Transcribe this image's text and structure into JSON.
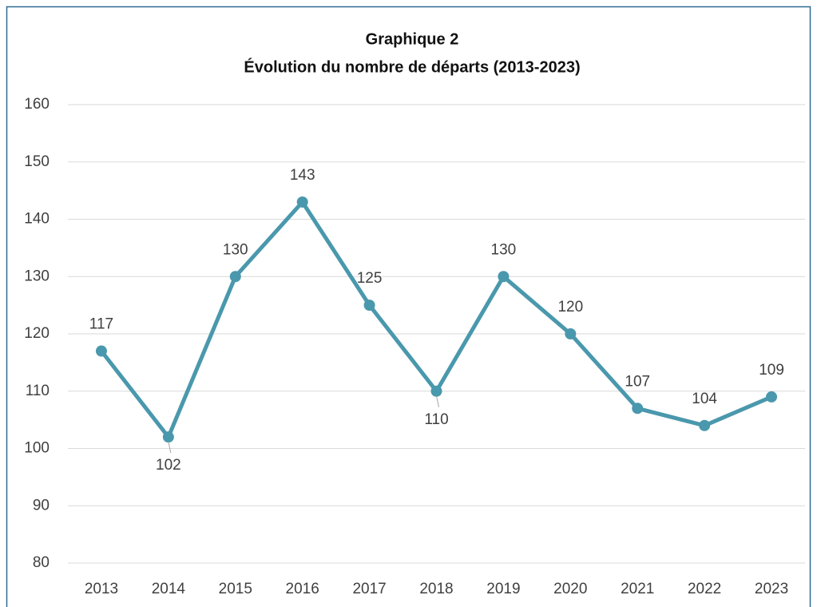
{
  "chart_data": {
    "type": "line",
    "title": "Graphique 2",
    "subtitle": "Évolution du nombre de départs (2013-2023)",
    "categories": [
      "2013",
      "2014",
      "2015",
      "2016",
      "2017",
      "2018",
      "2019",
      "2020",
      "2021",
      "2022",
      "2023"
    ],
    "series": [
      {
        "name": "Départs",
        "color": "#4a98ad",
        "values": [
          117,
          102,
          130,
          143,
          125,
          110,
          130,
          120,
          107,
          104,
          109
        ]
      }
    ],
    "ylim": [
      80,
      160
    ],
    "yticks": [
      80,
      90,
      100,
      110,
      120,
      130,
      140,
      150,
      160
    ],
    "grid": true
  }
}
